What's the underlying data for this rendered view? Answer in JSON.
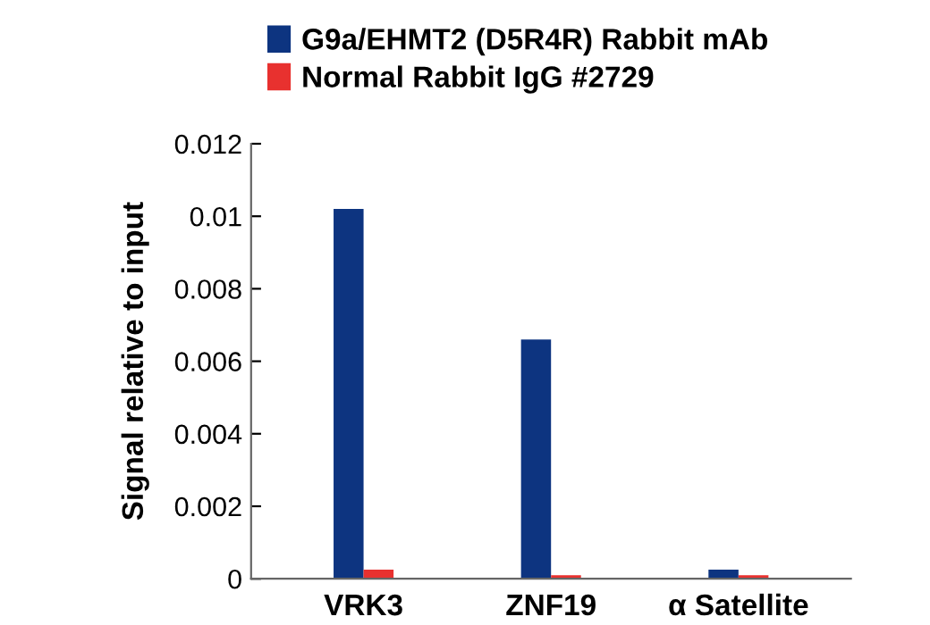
{
  "chart_data": {
    "type": "bar",
    "ylabel": "Signal relative to input",
    "categories": [
      "VRK3",
      "ZNF19",
      "α Satellite"
    ],
    "series": [
      {
        "name": "G9a/EHMT2 (D5R4R) Rabbit mAb",
        "color": "#0d3480",
        "values": [
          0.0102,
          0.0066,
          0.00025
        ]
      },
      {
        "name": "Normal Rabbit IgG #2729",
        "color": "#e8312f",
        "values": [
          0.00025,
          0.0001,
          0.0001
        ]
      }
    ],
    "ylim": [
      0,
      0.012
    ],
    "yticks": [
      0,
      0.002,
      0.004,
      0.006,
      0.008,
      0.01,
      0.012
    ],
    "grid": false,
    "legend": "top left"
  }
}
